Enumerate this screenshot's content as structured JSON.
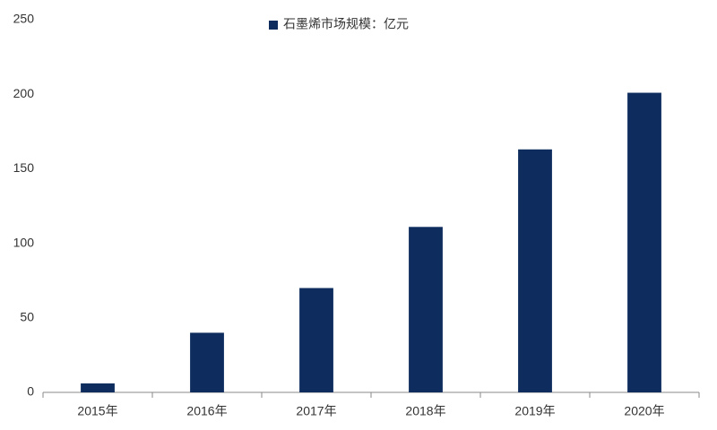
{
  "chart_data": {
    "type": "bar",
    "categories": [
      "2015年",
      "2016年",
      "2017年",
      "2018年",
      "2019年",
      "2020年"
    ],
    "series": [
      {
        "name": "石墨烯市场规模：亿元",
        "color": "#0e2d5e",
        "values": [
          6,
          40,
          70,
          111,
          163,
          201
        ]
      }
    ],
    "ylim": [
      0,
      250
    ],
    "yticks": [
      0,
      50,
      100,
      150,
      200,
      250
    ],
    "grid": false,
    "legend": "top"
  }
}
